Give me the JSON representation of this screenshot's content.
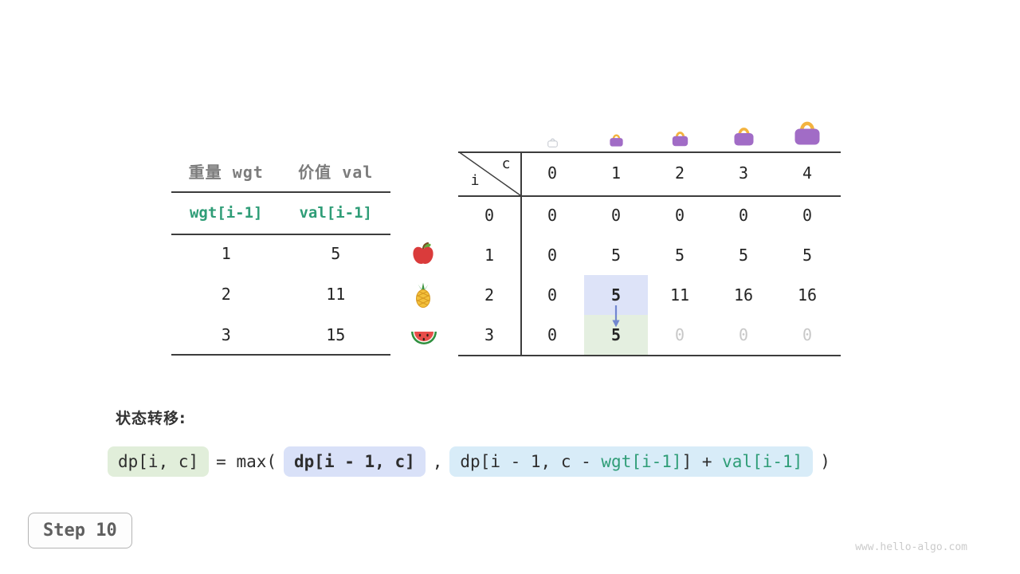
{
  "page": {
    "step_label": "Step 10",
    "watermark": "www.hello-algo.com"
  },
  "colors": {
    "teal": "#2f9d77",
    "dim_zero": "#c8c8c8",
    "highlight_blue": "#dde3f8",
    "highlight_green": "#e4efe0",
    "formula_green": "#e1eeda",
    "formula_blue": "#d9e1f8",
    "formula_lightblue": "#d8ecf8",
    "arrow_blue": "#7287d0",
    "bag_body": "#a16cc6",
    "bag_handle": "#f3b33f",
    "bag_empty": "#c9cdd4"
  },
  "item_table": {
    "headers": [
      {
        "label": "重量 wgt"
      },
      {
        "label": "价值 val"
      }
    ],
    "var_row": {
      "wgt": "wgt[i-1]",
      "val": "val[i-1]"
    },
    "rows": [
      {
        "wgt": "1",
        "val": "5",
        "icon": "apple-icon"
      },
      {
        "wgt": "2",
        "val": "11",
        "icon": "pineapple-icon"
      },
      {
        "wgt": "3",
        "val": "15",
        "icon": "watermelon-icon"
      }
    ]
  },
  "dp_table": {
    "corner": {
      "row_var": "i",
      "col_var": "c"
    },
    "capacity_icons": [
      "bag-empty-icon",
      "bag-1-icon",
      "bag-2-icon",
      "bag-3-icon",
      "bag-4-icon"
    ],
    "col_headers": [
      "0",
      "1",
      "2",
      "3",
      "4"
    ],
    "rows": [
      {
        "label": "0",
        "cells": [
          {
            "v": "0"
          },
          {
            "v": "0"
          },
          {
            "v": "0"
          },
          {
            "v": "0"
          },
          {
            "v": "0"
          }
        ]
      },
      {
        "label": "1",
        "cells": [
          {
            "v": "0"
          },
          {
            "v": "5"
          },
          {
            "v": "5"
          },
          {
            "v": "5"
          },
          {
            "v": "5"
          }
        ]
      },
      {
        "label": "2",
        "cells": [
          {
            "v": "0"
          },
          {
            "v": "5",
            "highlight": "blue",
            "bold": true
          },
          {
            "v": "11"
          },
          {
            "v": "16"
          },
          {
            "v": "16"
          }
        ]
      },
      {
        "label": "3",
        "cells": [
          {
            "v": "0"
          },
          {
            "v": "5",
            "highlight": "green",
            "bold": true
          },
          {
            "v": "0",
            "dim": true
          },
          {
            "v": "0",
            "dim": true
          },
          {
            "v": "0",
            "dim": true
          }
        ]
      }
    ]
  },
  "transition": {
    "label": "状态转移:",
    "tokens": [
      {
        "text": "dp[i, c]",
        "box": "green"
      },
      {
        "text": "= max("
      },
      {
        "text": "dp[i - 1, c]",
        "box": "blue",
        "bold": true
      },
      {
        "text": ","
      },
      {
        "box": "lightblue",
        "segments": [
          {
            "text": "dp[i - 1, c - "
          },
          {
            "text": "wgt[i-1]",
            "teal": true
          },
          {
            "text": "] + "
          },
          {
            "text": "val[i-1]",
            "teal": true
          }
        ]
      },
      {
        "text": ")"
      }
    ]
  }
}
